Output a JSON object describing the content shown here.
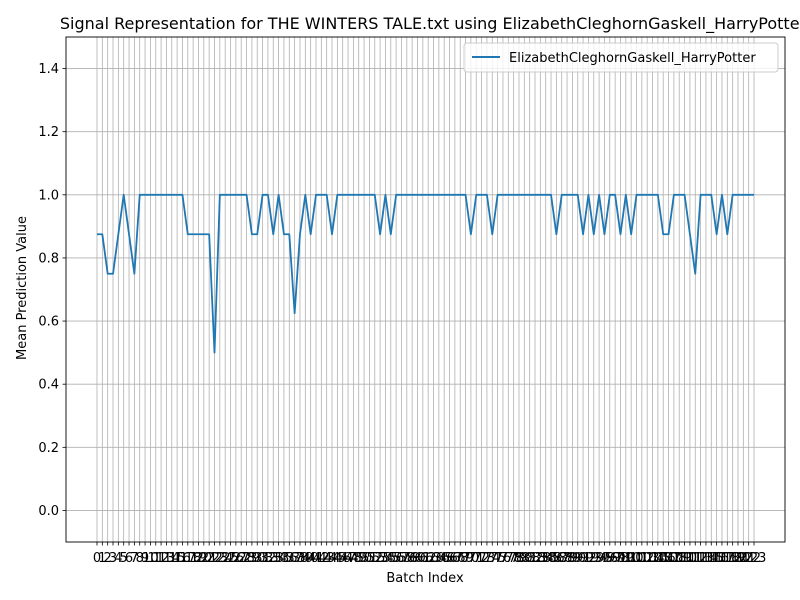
{
  "chart_data": {
    "type": "line",
    "title": "Signal Representation for THE WINTERS TALE.txt using ElizabethCleghornGaskell_HarryPotter",
    "xlabel": "Batch Index",
    "ylabel": "Mean Prediction Value",
    "ylim": [
      -0.1,
      1.5
    ],
    "xlim": [
      -5.8,
      128.8
    ],
    "yticks": [
      0.0,
      0.2,
      0.4,
      0.6,
      0.8,
      1.0,
      1.2,
      1.4
    ],
    "xticks_count": 124,
    "grid": true,
    "legend_position": "top-right",
    "series": [
      {
        "name": "ElizabethCleghornGaskell_HarryPotter",
        "color": "#1f77b4",
        "x": [
          0,
          1,
          2,
          3,
          4,
          5,
          6,
          7,
          8,
          9,
          10,
          11,
          12,
          13,
          14,
          15,
          16,
          17,
          18,
          19,
          20,
          21,
          22,
          23,
          24,
          25,
          26,
          27,
          28,
          29,
          30,
          31,
          32,
          33,
          34,
          35,
          36,
          37,
          38,
          39,
          40,
          41,
          42,
          43,
          44,
          45,
          46,
          47,
          48,
          49,
          50,
          51,
          52,
          53,
          54,
          55,
          56,
          57,
          58,
          59,
          60,
          61,
          62,
          63,
          64,
          65,
          66,
          67,
          68,
          69,
          70,
          71,
          72,
          73,
          74,
          75,
          76,
          77,
          78,
          79,
          80,
          81,
          82,
          83,
          84,
          85,
          86,
          87,
          88,
          89,
          90,
          91,
          92,
          93,
          94,
          95,
          96,
          97,
          98,
          99,
          100,
          101,
          102,
          103,
          104,
          105,
          106,
          107,
          108,
          109,
          110,
          111,
          112,
          113,
          114,
          115,
          116,
          117,
          118,
          119,
          120,
          121,
          122,
          123
        ],
        "values": [
          0.875,
          0.875,
          0.75,
          0.75,
          0.875,
          1.0,
          0.875,
          0.75,
          1.0,
          1.0,
          1.0,
          1.0,
          1.0,
          1.0,
          1.0,
          1.0,
          1.0,
          0.875,
          0.875,
          0.875,
          0.875,
          0.875,
          0.5,
          1.0,
          1.0,
          1.0,
          1.0,
          1.0,
          1.0,
          0.875,
          0.875,
          1.0,
          1.0,
          0.875,
          1.0,
          0.875,
          0.875,
          0.625,
          0.875,
          1.0,
          0.875,
          1.0,
          1.0,
          1.0,
          0.875,
          1.0,
          1.0,
          1.0,
          1.0,
          1.0,
          1.0,
          1.0,
          1.0,
          0.875,
          1.0,
          0.875,
          1.0,
          1.0,
          1.0,
          1.0,
          1.0,
          1.0,
          1.0,
          1.0,
          1.0,
          1.0,
          1.0,
          1.0,
          1.0,
          1.0,
          0.875,
          1.0,
          1.0,
          1.0,
          0.875,
          1.0,
          1.0,
          1.0,
          1.0,
          1.0,
          1.0,
          1.0,
          1.0,
          1.0,
          1.0,
          1.0,
          0.875,
          1.0,
          1.0,
          1.0,
          1.0,
          0.875,
          1.0,
          0.875,
          1.0,
          0.875,
          1.0,
          1.0,
          0.875,
          1.0,
          0.875,
          1.0,
          1.0,
          1.0,
          1.0,
          1.0,
          0.875,
          0.875,
          1.0,
          1.0,
          1.0,
          0.875,
          0.75,
          1.0,
          1.0,
          1.0,
          0.875,
          1.0,
          0.875,
          1.0,
          1.0,
          1.0,
          1.0,
          1.0
        ]
      }
    ]
  }
}
